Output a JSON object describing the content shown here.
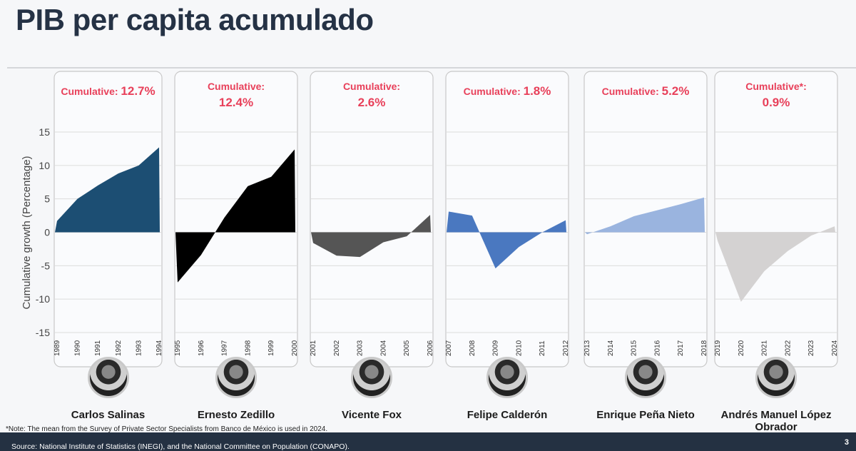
{
  "title": "PIB per capita acumulado",
  "chart_data": {
    "type": "area",
    "ylabel": "Cumulative growth (Percentage)",
    "ylim": [
      -15,
      15
    ],
    "yticks": [
      15,
      10,
      5,
      0,
      -5,
      -10,
      -15
    ],
    "panels": [
      {
        "name": "Carlos Salinas",
        "label_prefix": "Cumulative:",
        "label_value": "12.7%",
        "label_layout": "inline",
        "years": [
          "1989",
          "1990",
          "1991",
          "1992",
          "1993",
          "1994"
        ],
        "values": [
          1.7,
          5.0,
          7.0,
          8.8,
          10.0,
          12.7
        ],
        "color": "#1c4e73"
      },
      {
        "name": "Ernesto Zedillo",
        "label_prefix": "Cumulative:",
        "label_value": "12.4%",
        "label_layout": "stacked",
        "years": [
          "1995",
          "1996",
          "1997",
          "1998",
          "1999",
          "2000"
        ],
        "values": [
          -7.5,
          -3.4,
          2.2,
          6.9,
          8.3,
          12.4
        ],
        "color": "#000000"
      },
      {
        "name": "Vicente Fox",
        "label_prefix": "Cumulative:",
        "label_value": "2.6%",
        "label_layout": "stacked",
        "years": [
          "2001",
          "2002",
          "2003",
          "2004",
          "2005",
          "2006"
        ],
        "values": [
          -1.6,
          -3.5,
          -3.7,
          -1.5,
          -0.6,
          2.6
        ],
        "color": "#555555"
      },
      {
        "name": "Felipe Calderón",
        "label_prefix": "Cumulative:",
        "label_value": "1.8%",
        "label_layout": "inline",
        "years": [
          "2007",
          "2008",
          "2009",
          "2010",
          "2011",
          "2012"
        ],
        "values": [
          3.1,
          2.5,
          -5.4,
          -2.2,
          0.0,
          1.8
        ],
        "color": "#4a78c0"
      },
      {
        "name": "Enrique Peña Nieto",
        "label_prefix": "Cumulative:",
        "label_value": "5.2%",
        "label_layout": "inline",
        "years": [
          "2013",
          "2014",
          "2015",
          "2016",
          "2017",
          "2018"
        ],
        "values": [
          -0.3,
          0.9,
          2.4,
          3.3,
          4.2,
          5.2
        ],
        "color": "#9ab4df"
      },
      {
        "name": "Andrés Manuel López Obrador",
        "label_prefix": "Cumulative*:",
        "label_value": "0.9%",
        "label_layout": "stacked",
        "years": [
          "2019",
          "2020",
          "2021",
          "2022",
          "2023",
          "2024"
        ],
        "values": [
          -1.3,
          -10.4,
          -5.8,
          -2.8,
          -0.5,
          0.9
        ],
        "color": "#d4d2d2"
      }
    ],
    "label_color": "#e8405a",
    "grid": true
  },
  "note": "*Note: The mean from the Survey of Private Sector Specialists from Banco de México is used in 2024.",
  "source": "Source: National Institute of Statistics (INEGI), and the National Committee on Population (CONAPO).",
  "page_number": "3"
}
